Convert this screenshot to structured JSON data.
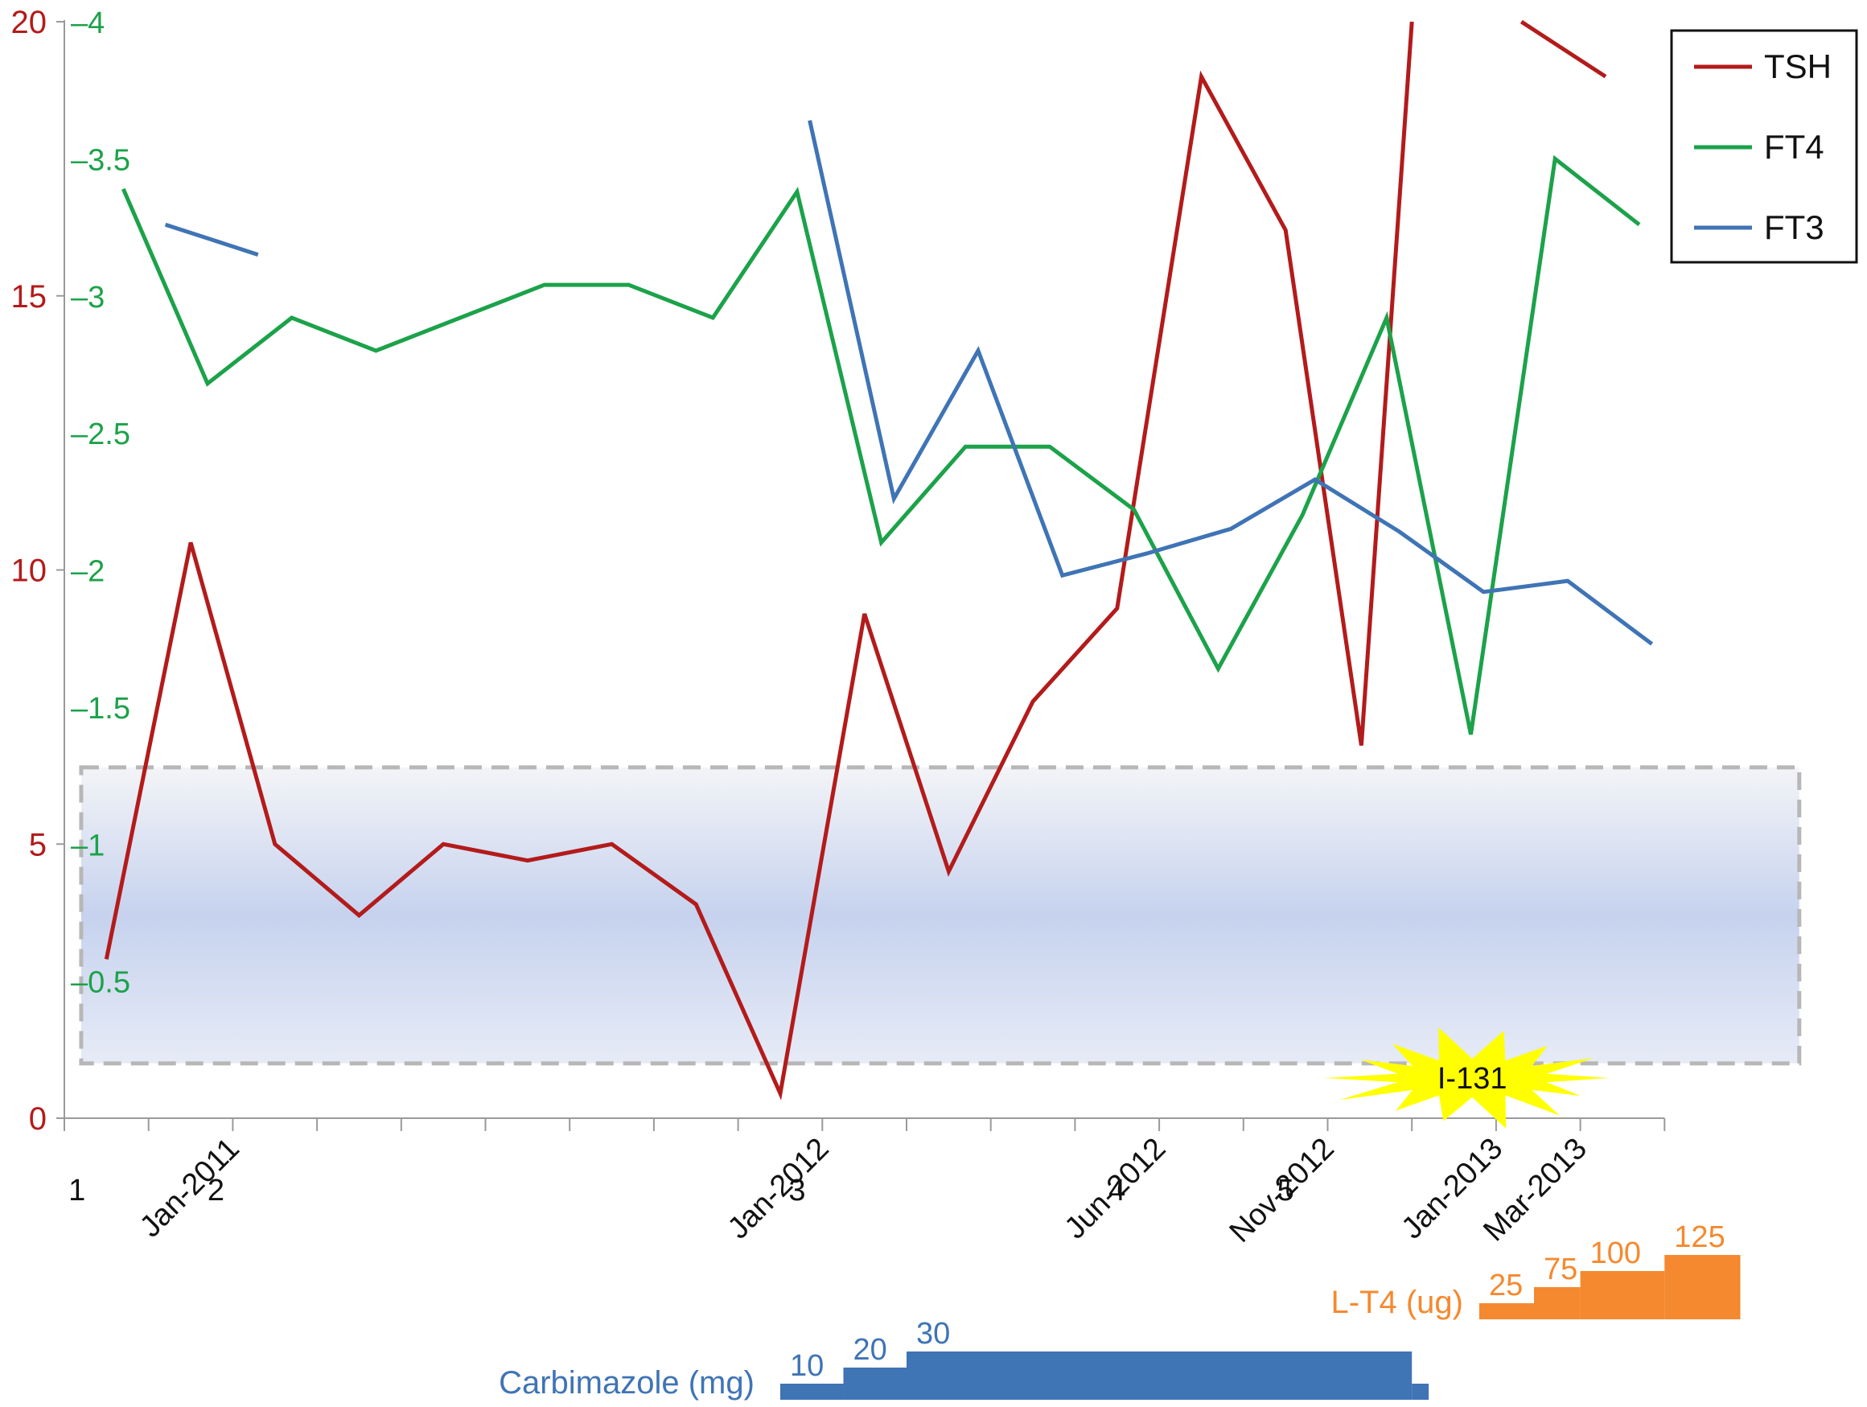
{
  "chart_data": {
    "type": "line",
    "title": "",
    "y_left": {
      "min": 0,
      "max": 20,
      "ticks": [
        "0",
        "5",
        "10",
        "15",
        "20"
      ],
      "color": "#b31b1b"
    },
    "y_right": {
      "min": 0,
      "max": 4,
      "ticks": [
        "–0.5",
        "–1",
        "–1.5",
        "–2",
        "–2.5",
        "–3",
        "–3.5",
        "–4"
      ],
      "tick_values": [
        0.5,
        1,
        1.5,
        2,
        2.5,
        3,
        3.5,
        4
      ],
      "color": "#1ca24a"
    },
    "x_labels": [
      {
        "label": "Jan-2011",
        "x": 2
      },
      {
        "label": "Jan-2012",
        "x": 9
      },
      {
        "label": "Jun-2012",
        "x": 13
      },
      {
        "label": "Nov-2012",
        "x": 15
      },
      {
        "label": "Jan-2013",
        "x": 17
      },
      {
        "label": "Mar-2013",
        "x": 18
      }
    ],
    "x_ticks": [
      0,
      1,
      2,
      3,
      4,
      5,
      6,
      7,
      8,
      9,
      10,
      11,
      12,
      13,
      14,
      15,
      16,
      17,
      18,
      19
    ],
    "x_max": 19,
    "visit_numbers": [
      {
        "label": "1",
        "x": 0.15
      },
      {
        "label": "2",
        "x": 1.8
      },
      {
        "label": "3",
        "x": 8.7
      },
      {
        "label": "4",
        "x": 12.5
      },
      {
        "label": "5",
        "x": 14.5
      }
    ],
    "series": [
      {
        "name": "TSH",
        "color": "#b31b1b",
        "axis": "left",
        "segments": [
          [
            [
              0.5,
              2.9
            ],
            [
              1.5,
              10.5
            ],
            [
              2.5,
              5.0
            ],
            [
              3.5,
              3.7
            ],
            [
              4.5,
              5.0
            ],
            [
              5.5,
              4.7
            ],
            [
              6.5,
              5.0
            ],
            [
              7.5,
              3.9
            ],
            [
              8.5,
              0.45
            ],
            [
              9.5,
              9.2
            ],
            [
              10.5,
              4.5
            ],
            [
              11.5,
              7.6
            ],
            [
              12.5,
              9.3
            ],
            [
              13.5,
              19.0
            ],
            [
              14.5,
              16.2
            ],
            [
              15.4,
              6.8
            ],
            [
              16.0,
              20.0
            ]
          ],
          [
            [
              17.3,
              20.0
            ],
            [
              18.3,
              19.0
            ]
          ]
        ]
      },
      {
        "name": "FT4",
        "color": "#1ca24a",
        "axis": "right",
        "segments": [
          [
            [
              0.7,
              3.39
            ],
            [
              1.7,
              2.68
            ],
            [
              2.7,
              2.92
            ],
            [
              3.7,
              2.8
            ],
            [
              5.7,
              3.04
            ],
            [
              6.7,
              3.04
            ],
            [
              7.7,
              2.92
            ],
            [
              8.7,
              3.38
            ],
            [
              9.7,
              2.1
            ],
            [
              10.7,
              2.45
            ],
            [
              11.7,
              2.45
            ],
            [
              12.7,
              2.22
            ],
            [
              13.7,
              1.64
            ],
            [
              14.7,
              2.2
            ],
            [
              15.7,
              2.92
            ],
            [
              16.7,
              1.4
            ],
            [
              17.7,
              3.5
            ],
            [
              18.7,
              3.26
            ]
          ]
        ]
      },
      {
        "name": "FT3",
        "color": "#3f74b5",
        "axis": "right",
        "segments": [
          [
            [
              1.2,
              3.26
            ],
            [
              2.3,
              3.15
            ]
          ],
          [
            [
              8.85,
              3.64
            ],
            [
              9.85,
              2.26
            ],
            [
              10.85,
              2.8
            ],
            [
              11.85,
              1.98
            ],
            [
              12.85,
              2.06
            ],
            [
              13.85,
              2.15
            ],
            [
              14.85,
              2.33
            ],
            [
              15.85,
              2.14
            ],
            [
              16.85,
              1.92
            ],
            [
              17.85,
              1.96
            ],
            [
              18.85,
              1.73
            ]
          ]
        ]
      }
    ],
    "reference_band": {
      "axis": "left",
      "from": 1.0,
      "to": 6.4,
      "x_from": 0.2,
      "x_to": 20.6
    },
    "legend": {
      "position": "top-right",
      "entries": [
        "TSH",
        "FT4",
        "FT3"
      ]
    },
    "annotation": {
      "label": "I-131",
      "x": 16.0,
      "color": "#ffff00"
    },
    "carbimazole": {
      "label": "Carbimazole (mg)",
      "color": "#3f74b5",
      "steps": [
        {
          "dose": "10",
          "x_from": 8.5,
          "x_to": 9.25,
          "level": 1
        },
        {
          "dose": "20",
          "x_from": 9.25,
          "x_to": 10.0,
          "level": 2
        },
        {
          "dose": "30",
          "x_from": 10.0,
          "x_to": 16.0,
          "level": 3
        }
      ],
      "tail_x_to": 16.2
    },
    "levothyroxine": {
      "label": "L-T4 (ug)",
      "color": "#f5892f",
      "steps": [
        {
          "dose": "25",
          "x_from": 16.8,
          "x_to": 17.45,
          "level": 1
        },
        {
          "dose": "75",
          "x_from": 17.45,
          "x_to": 18.0,
          "level": 2
        },
        {
          "dose": "100",
          "x_from": 18.0,
          "x_to": 19.0,
          "level": 3
        },
        {
          "dose": "125",
          "x_from": 19.0,
          "x_to": 19.9,
          "level": 4
        }
      ]
    }
  }
}
